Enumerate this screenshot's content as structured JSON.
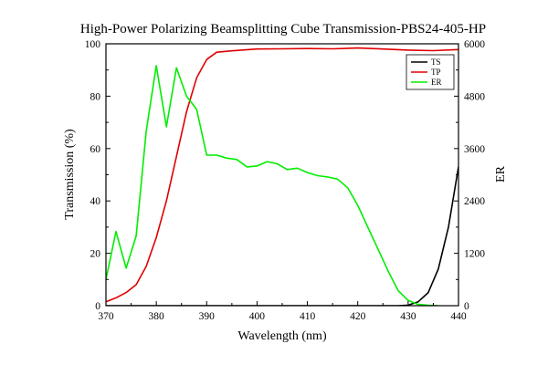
{
  "chart_data": {
    "type": "line",
    "title": "High-Power Polarizing Beamsplitting Cube Transmission-PBS24-405-HP",
    "xlabel": "Wavelength (nm)",
    "ylabel": "Transmission (%)",
    "y2label": "ER",
    "xlim": [
      370,
      440
    ],
    "ylim": [
      0,
      100
    ],
    "y2lim": [
      0,
      6000
    ],
    "xticks": [
      370,
      380,
      390,
      400,
      410,
      420,
      430,
      440
    ],
    "yticks": [
      0,
      20,
      40,
      60,
      80,
      100
    ],
    "y2ticks": [
      0,
      1200,
      2400,
      3600,
      4800,
      6000
    ],
    "grid": false,
    "legend_position": "top-right",
    "series": [
      {
        "name": "TS",
        "axis": "left",
        "color": "#000000",
        "x": [
          370,
          380,
          390,
          400,
          410,
          420,
          425,
          428,
          430,
          432,
          434,
          436,
          438,
          440
        ],
        "values": [
          0,
          0,
          0,
          0,
          0,
          0,
          0,
          0,
          0.2,
          1.5,
          5,
          14,
          30,
          53
        ]
      },
      {
        "name": "TP",
        "axis": "left",
        "color": "#e00000",
        "x": [
          370,
          372,
          374,
          376,
          378,
          380,
          382,
          384,
          386,
          388,
          390,
          392,
          395,
          400,
          405,
          410,
          415,
          420,
          425,
          430,
          435,
          440
        ],
        "values": [
          1.5,
          3,
          5,
          8,
          15,
          26,
          40,
          57,
          74,
          87,
          94,
          96.8,
          97.3,
          98,
          98.1,
          98.2,
          98.1,
          98.4,
          98.0,
          97.6,
          97.4,
          97.8
        ]
      },
      {
        "name": "ER",
        "axis": "right",
        "color": "#00ee00",
        "x": [
          370,
          372,
          374,
          376,
          378,
          380,
          382,
          384,
          386,
          388,
          390,
          392,
          394,
          396,
          398,
          400,
          402,
          404,
          406,
          408,
          410,
          412,
          414,
          416,
          418,
          420,
          422,
          424,
          426,
          428,
          430,
          432,
          434,
          436
        ],
        "values": [
          600,
          1700,
          860,
          1600,
          4000,
          5500,
          4100,
          5450,
          4800,
          4500,
          3450,
          3450,
          3380,
          3350,
          3180,
          3200,
          3300,
          3250,
          3120,
          3150,
          3050,
          2980,
          2950,
          2900,
          2700,
          2300,
          1800,
          1300,
          800,
          350,
          120,
          30,
          8,
          0
        ]
      }
    ]
  }
}
